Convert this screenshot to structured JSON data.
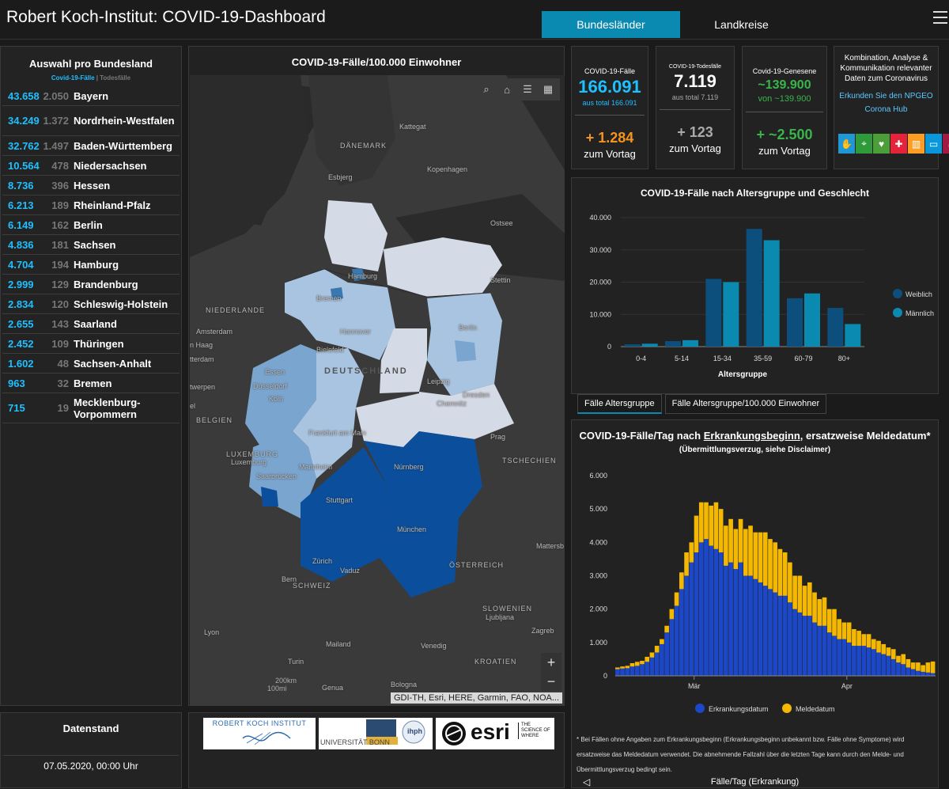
{
  "header": {
    "title": "Robert Koch-Institut: COVID-19-Dashboard",
    "tabs": [
      "Bundesländer",
      "Landkreise"
    ],
    "menu_icon": "hamburger-menu-icon"
  },
  "states_panel": {
    "title": "Auswahl pro Bundesland",
    "legend_cases": "Covid-19-Fälle",
    "legend_sep": "|",
    "legend_deaths": "Todesfälle",
    "rows": [
      {
        "cases": "43.658",
        "deaths": "2.050",
        "name": "Bayern"
      },
      {
        "cases": "34.249",
        "deaths": "1.372",
        "name": "Nordrhein-Westfalen"
      },
      {
        "cases": "32.762",
        "deaths": "1.497",
        "name": "Baden-Württemberg"
      },
      {
        "cases": "10.564",
        "deaths": "478",
        "name": "Niedersachsen"
      },
      {
        "cases": "8.736",
        "deaths": "396",
        "name": "Hessen"
      },
      {
        "cases": "6.213",
        "deaths": "189",
        "name": "Rheinland-Pfalz"
      },
      {
        "cases": "6.149",
        "deaths": "162",
        "name": "Berlin"
      },
      {
        "cases": "4.836",
        "deaths": "181",
        "name": "Sachsen"
      },
      {
        "cases": "4.704",
        "deaths": "194",
        "name": "Hamburg"
      },
      {
        "cases": "2.999",
        "deaths": "129",
        "name": "Brandenburg"
      },
      {
        "cases": "2.834",
        "deaths": "120",
        "name": "Schleswig-Holstein"
      },
      {
        "cases": "2.655",
        "deaths": "143",
        "name": "Saarland"
      },
      {
        "cases": "2.452",
        "deaths": "109",
        "name": "Thüringen"
      },
      {
        "cases": "1.602",
        "deaths": "48",
        "name": "Sachsen-Anhalt"
      },
      {
        "cases": "963",
        "deaths": "32",
        "name": "Bremen"
      },
      {
        "cases": "715",
        "deaths": "19",
        "name": "Mecklenburg-Vorpommern"
      }
    ]
  },
  "date_panel": {
    "title": "Datenstand",
    "value": "07.05.2020, 00:00 Uhr"
  },
  "map": {
    "title": "COVID-19-Fälle/100.000 Einwohner",
    "country_label": "DEUTSCHLAND",
    "labels": [
      "Kattegat",
      "DÄNEMARK",
      "Esbjerg",
      "Kopenhagen",
      "Ostsee",
      "Hamburg",
      "Stettin",
      "NIEDERLANDE",
      "Bremen",
      "Berlin",
      "Amsterdam",
      "Hannover",
      "Bielefeld",
      "n Haag",
      "tterdam",
      "Essen",
      "Düsseldorf",
      "Leipzig",
      "Dresden",
      "twerpen",
      "Köln",
      "Chemnitz",
      "el",
      "BELGIEN",
      "Prag",
      "Frankfurt am Main",
      "LUXEMBURG",
      "Luxemburg",
      "TSCHECHIEN",
      "Nürnberg",
      "Mannheim",
      "Saarbrücken",
      "Stuttgart",
      "München",
      "Mattersb",
      "Zürich",
      "Vaduz",
      "ÖSTERREICH",
      "Bern",
      "SCHWEIZ",
      "SLOWENIEN",
      "Ljubljana",
      "Lyon",
      "Zagreb",
      "Mailand",
      "Venedig",
      "KROATIEN",
      "Turin",
      "Genua",
      "Bologna"
    ],
    "scale_km": "200km",
    "scale_mi": "100mi",
    "attribution": "GDI-TH, Esri, HERE, Garmin, FAO, NOA...",
    "zoom_in": "+",
    "zoom_out": "−",
    "colors": {
      "water": "#2a2a2a",
      "land": "#3c3c3c",
      "light": "#d7dbe8",
      "lightblue": "#a9c4e0",
      "mid": "#7aa5cf",
      "dark": "#0b4f9c"
    }
  },
  "logos": {
    "rki": "ROBERT KOCH INSTITUT",
    "bonn": "UNIVERSITÄT BONN",
    "bonn_short": "ihph",
    "esri": "esri",
    "esri_tag": "THE SCIENCE OF WHERE"
  },
  "stats": {
    "cases": {
      "label": "COVID-19-Fälle",
      "value": "166.091",
      "total": "aus total 166.091",
      "delta": "+ 1.284",
      "delta_label": "zum Vortag",
      "color": "#1ec0ff",
      "delta_color": "#f7941d"
    },
    "deaths": {
      "label": "COVID-19-Todesfälle",
      "value": "7.119",
      "total": "aus total 7.119",
      "delta": "+ 123",
      "delta_label": "zum Vortag",
      "color": "#ffffff",
      "delta_color": "#aaaaaa"
    },
    "recovered": {
      "label": "Covid-19-Genesene",
      "value": "~139.900",
      "total": "von ~139.900",
      "delta": "+ ~2.500",
      "delta_label": "zum Vortag",
      "color": "#39b54a",
      "delta_color": "#39b54a"
    }
  },
  "info": {
    "text": "Kombination, Analyse & Kommunikation relevanter Daten zum Coronavirus",
    "link1": "Erkunden Sie den NPGEO",
    "link2": "Corona Hub"
  },
  "age_chart_tabs": [
    "Fälle Altersgruppe",
    "Fälle Altersgruppe/100.000 Einwohner"
  ],
  "day_chart_meta": {
    "title_pre": "COVID-19-Fälle/Tag nach ",
    "title_link": "Erkrankungsbeginn",
    "title_post": ", ersatzweise Meldedatum*",
    "subtitle": "(Übermittlungsverzug, siehe Disclaimer)",
    "footnote": "* Bei Fällen ohne Angaben zum Erkrankungsbeginn (Erkrankungsbeginn unbekannt bzw. Fälle ohne Symptome) wird ersatzweise das Meldedatum verwendet. Die abnehmende Fallzahl über die letzten Tage kann durch den Melde- und Übermittlungsverzug bedingt sein.",
    "bottom_label": "Fälle/Tag (Erkrankung)"
  },
  "chart_data": [
    {
      "type": "bar",
      "title": "COVID-19-Fälle nach Altersgruppe und Geschlecht",
      "xlabel": "Altersgruppe",
      "ylabel": "",
      "categories": [
        "0-4",
        "5-14",
        "15-34",
        "35-59",
        "60-79",
        "80+"
      ],
      "series": [
        {
          "name": "Weiblich",
          "values": [
            700,
            1700,
            21000,
            36500,
            15000,
            12000
          ],
          "color": "#0d4f7c"
        },
        {
          "name": "Männlich",
          "values": [
            900,
            2000,
            20000,
            33000,
            16500,
            7000
          ],
          "color": "#0b8ab1"
        }
      ],
      "ylim": [
        0,
        40000
      ],
      "yticks": [
        "0",
        "10.000",
        "20.000",
        "30.000",
        "40.000"
      ],
      "legend": "right"
    },
    {
      "type": "bar",
      "stacked": true,
      "title": "COVID-19-Fälle/Tag nach Erkrankungsbeginn, ersatzweise Meldedatum*",
      "xlabel": "",
      "ylabel": "",
      "xticks": [
        {
          "label": "Mär",
          "index": 16
        },
        {
          "label": "Apr",
          "index": 47
        }
      ],
      "ylim": [
        0,
        6000
      ],
      "yticks": [
        "0",
        "1.000",
        "2.000",
        "3.000",
        "4.000",
        "5.000",
        "6.000"
      ],
      "legend": "bottom",
      "series": [
        {
          "name": "Erkrankungsdatum",
          "color": "#1c48c8",
          "values": [
            200,
            220,
            230,
            280,
            300,
            350,
            420,
            550,
            700,
            950,
            1300,
            1700,
            2100,
            2600,
            3000,
            3400,
            3700,
            4000,
            4100,
            3900,
            3800,
            3700,
            3300,
            3400,
            3200,
            3400,
            3000,
            3000,
            2900,
            2800,
            2700,
            2600,
            2500,
            2400,
            2400,
            2200,
            2000,
            1900,
            1800,
            1800,
            1600,
            1500,
            1500,
            1300,
            1200,
            1100,
            1100,
            1000,
            900,
            900,
            900,
            850,
            800,
            700,
            650,
            600,
            500,
            400,
            350,
            250,
            200,
            150,
            120,
            100,
            80
          ]
        },
        {
          "name": "Meldedatum",
          "color": "#f5b800",
          "values": [
            50,
            60,
            70,
            100,
            120,
            100,
            150,
            150,
            200,
            150,
            200,
            300,
            400,
            500,
            700,
            600,
            1100,
            1200,
            1100,
            1200,
            1400,
            1300,
            1200,
            1300,
            1200,
            1300,
            1400,
            1500,
            1400,
            1500,
            1600,
            1500,
            1500,
            1400,
            1300,
            1200,
            1000,
            1100,
            900,
            1000,
            900,
            800,
            850,
            700,
            800,
            600,
            500,
            600,
            500,
            450,
            350,
            400,
            300,
            350,
            300,
            250,
            300,
            200,
            300,
            250,
            200,
            250,
            200,
            300,
            350
          ]
        }
      ]
    }
  ]
}
